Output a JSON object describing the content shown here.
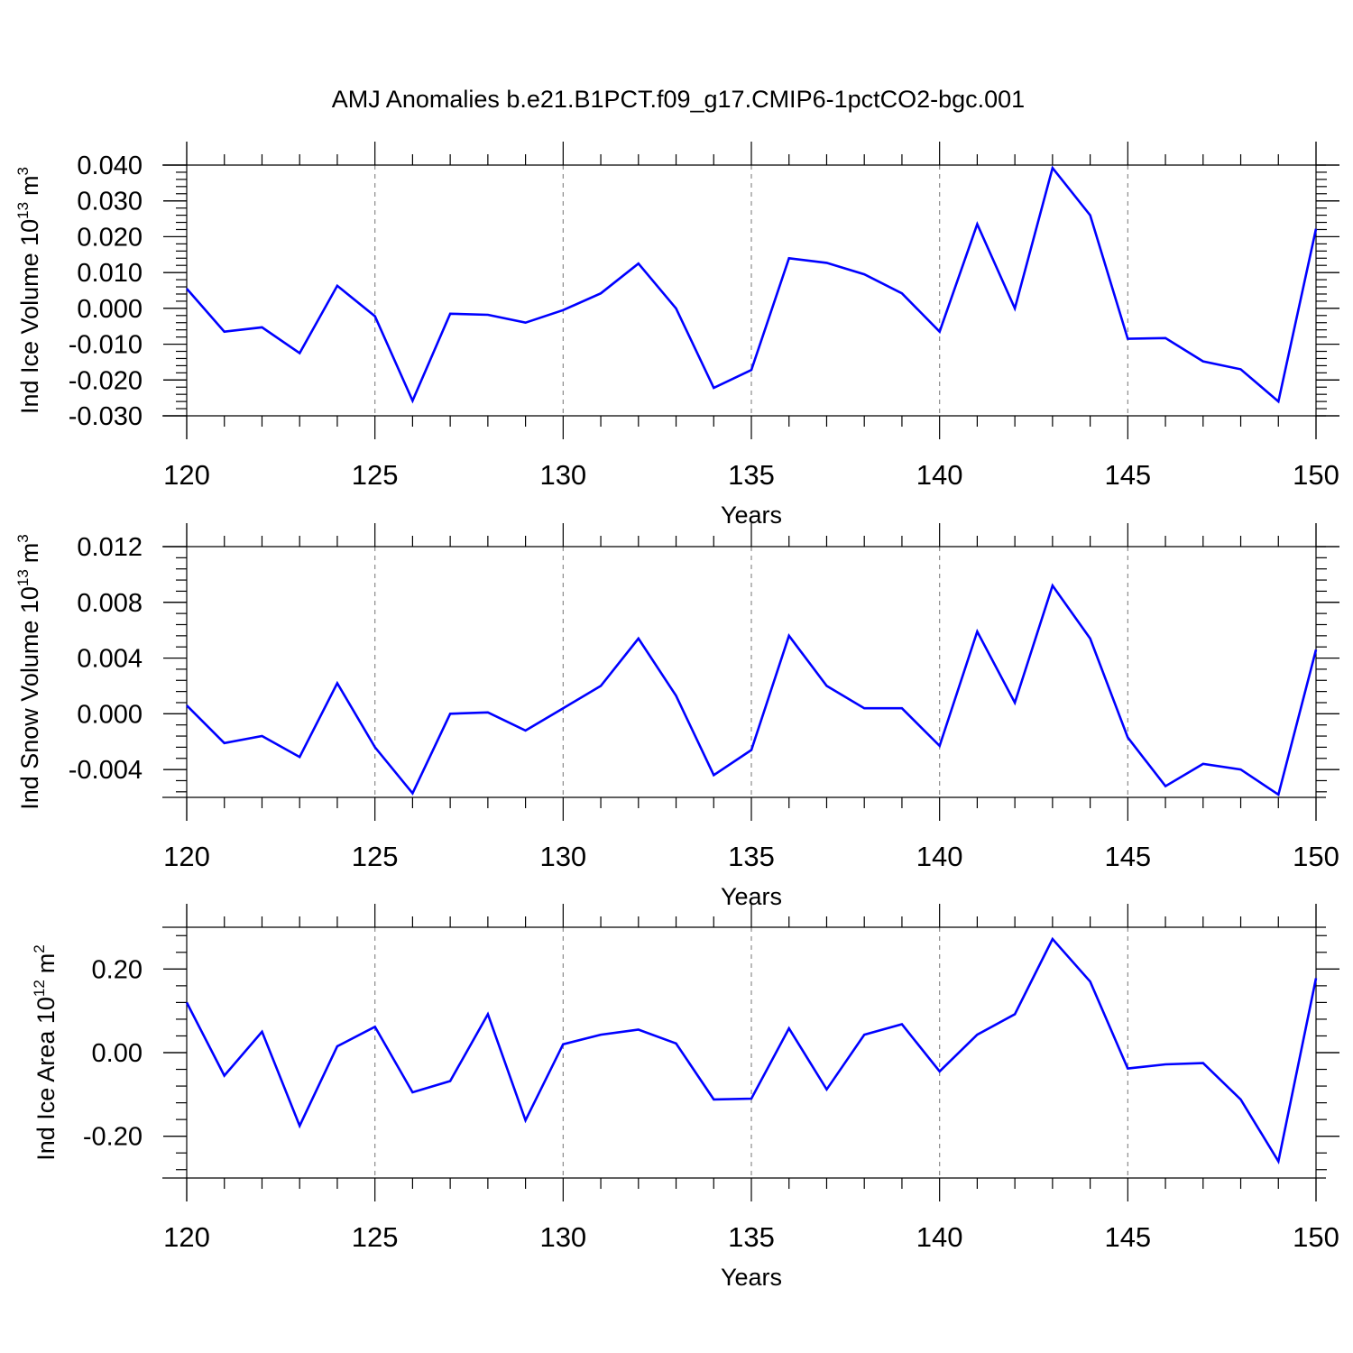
{
  "title": "AMJ Anomalies b.e21.B1PCT.f09_g17.CMIP6-1pctCO2-bgc.001",
  "line_color": "#0000ff",
  "chart_data": [
    {
      "type": "line",
      "ylabel": "Ind Ice Volume 10",
      "ylabel_sup": "13",
      "ylabel_unit": "m",
      "ylabel_unit_sup": "3",
      "xlabel": "Years",
      "xlim": [
        120,
        150
      ],
      "ylim": [
        -0.03,
        0.04
      ],
      "xticks": [
        120,
        125,
        130,
        135,
        140,
        145,
        150
      ],
      "yticks": [
        -0.03,
        -0.02,
        -0.01,
        0.0,
        0.01,
        0.02,
        0.03,
        0.04
      ],
      "ytick_labels": [
        "-0.030",
        "-0.020",
        "-0.010",
        "0.000",
        "0.010",
        "0.020",
        "0.030",
        "0.040"
      ],
      "x": [
        120,
        121,
        122,
        123,
        124,
        125,
        126,
        127,
        128,
        129,
        130,
        131,
        132,
        133,
        134,
        135,
        136,
        137,
        138,
        139,
        140,
        141,
        142,
        143,
        144,
        145,
        146,
        147,
        148,
        149,
        150
      ],
      "series": [
        {
          "values": [
            0.0055,
            -0.0065,
            -0.0053,
            -0.0125,
            0.0063,
            -0.0022,
            -0.0258,
            -0.0015,
            -0.0018,
            -0.004,
            -0.0005,
            0.0042,
            0.0125,
            0.0,
            -0.0222,
            -0.0172,
            0.014,
            0.0127,
            0.0095,
            0.0042,
            -0.0065,
            0.0235,
            0.0,
            0.0392,
            0.026,
            -0.0085,
            -0.0083,
            -0.0148,
            -0.017,
            -0.026,
            0.0222
          ]
        }
      ]
    },
    {
      "type": "line",
      "ylabel": "Ind Snow Volume 10",
      "ylabel_sup": "13",
      "ylabel_unit": "m",
      "ylabel_unit_sup": "3",
      "xlabel": "Years",
      "xlim": [
        120,
        150
      ],
      "ylim": [
        -0.006,
        0.012
      ],
      "xticks": [
        120,
        125,
        130,
        135,
        140,
        145,
        150
      ],
      "yticks": [
        -0.004,
        0.0,
        0.004,
        0.008,
        0.012
      ],
      "ytick_labels": [
        "-0.004",
        "0.000",
        "0.004",
        "0.008",
        "0.012"
      ],
      "x": [
        120,
        121,
        122,
        123,
        124,
        125,
        126,
        127,
        128,
        129,
        130,
        131,
        132,
        133,
        134,
        135,
        136,
        137,
        138,
        139,
        140,
        141,
        142,
        143,
        144,
        145,
        146,
        147,
        148,
        149,
        150
      ],
      "series": [
        {
          "values": [
            0.0006,
            -0.0021,
            -0.0016,
            -0.0031,
            0.0022,
            -0.0024,
            -0.0057,
            0.0,
            0.0001,
            -0.0012,
            0.0004,
            0.002,
            0.0054,
            0.0013,
            -0.0044,
            -0.0026,
            0.0056,
            0.002,
            0.0004,
            0.0004,
            -0.0023,
            0.0059,
            0.0008,
            0.0092,
            0.0054,
            -0.0017,
            -0.0052,
            -0.0036,
            -0.004,
            -0.0058,
            0.0046
          ]
        }
      ]
    },
    {
      "type": "line",
      "ylabel": "Ind Ice Area 10",
      "ylabel_sup": "12",
      "ylabel_unit": "m",
      "ylabel_unit_sup": "2",
      "xlabel": "Years",
      "xlim": [
        120,
        150
      ],
      "ylim": [
        -0.3,
        0.3
      ],
      "xticks": [
        120,
        125,
        130,
        135,
        140,
        145,
        150
      ],
      "yticks": [
        -0.2,
        0.0,
        0.2
      ],
      "ytick_labels": [
        "-0.20",
        "0.00",
        "0.20"
      ],
      "x": [
        120,
        121,
        122,
        123,
        124,
        125,
        126,
        127,
        128,
        129,
        130,
        131,
        132,
        133,
        134,
        135,
        136,
        137,
        138,
        139,
        140,
        141,
        142,
        143,
        144,
        145,
        146,
        147,
        148,
        149,
        150
      ],
      "series": [
        {
          "values": [
            0.12,
            -0.055,
            0.05,
            -0.175,
            0.015,
            0.062,
            -0.095,
            -0.068,
            0.092,
            -0.162,
            0.02,
            0.043,
            0.055,
            0.022,
            -0.112,
            -0.11,
            0.058,
            -0.088,
            0.043,
            0.068,
            -0.045,
            0.043,
            0.092,
            0.272,
            0.17,
            -0.038,
            -0.028,
            -0.025,
            -0.112,
            -0.26,
            0.178
          ]
        }
      ]
    }
  ]
}
